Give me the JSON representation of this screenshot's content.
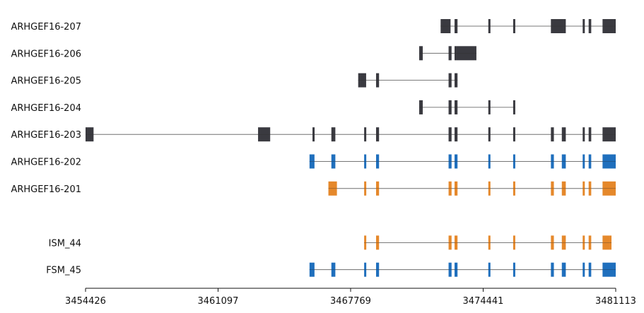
{
  "chart_data": {
    "type": "gene-structure",
    "title": "",
    "xlabel": "",
    "ylabel": "",
    "xlim": [
      3454426,
      3481113
    ],
    "xticks": [
      3454426,
      3461097,
      3467769,
      3474441,
      3481113
    ],
    "colors": {
      "reference": "#3a3a40",
      "blue": "#1f6fbd",
      "orange": "#e5882b",
      "intron": "#7a7a7a",
      "axis": "#111111"
    },
    "transcripts": [
      {
        "name": "ARHGEF16-207",
        "color": "reference",
        "start": 3481113,
        "end": 3481113,
        "exons": [
          [
            3472300,
            3472800,
            "wide"
          ],
          [
            3473000,
            3473150,
            "wide"
          ],
          [
            3474700,
            3474800,
            "thin"
          ],
          [
            3475950,
            3476050,
            "thin"
          ],
          [
            3477850,
            3478600,
            "wide"
          ],
          [
            3479450,
            3479550,
            "thin"
          ],
          [
            3479750,
            3479880,
            "thin"
          ],
          [
            3480450,
            3481113,
            "wide"
          ]
        ]
      },
      {
        "name": "ARHGEF16-206",
        "color": "reference",
        "exons": [
          [
            3471220,
            3471400,
            "thin"
          ],
          [
            3472700,
            3472850,
            "thin"
          ],
          [
            3473000,
            3474100,
            "wide"
          ]
        ]
      },
      {
        "name": "ARHGEF16-205",
        "color": "reference",
        "exons": [
          [
            3468150,
            3468550,
            "wide"
          ],
          [
            3469050,
            3469200,
            "thin"
          ],
          [
            3472700,
            3472850,
            "thin"
          ],
          [
            3473000,
            3473150,
            "thin"
          ]
        ]
      },
      {
        "name": "ARHGEF16-204",
        "color": "reference",
        "exons": [
          [
            3471220,
            3471400,
            "thin"
          ],
          [
            3472700,
            3472850,
            "thin"
          ],
          [
            3473000,
            3473150,
            "thin"
          ],
          [
            3474700,
            3474800,
            "thin"
          ],
          [
            3475950,
            3476050,
            "thin"
          ]
        ]
      },
      {
        "name": "ARHGEF16-203",
        "color": "reference",
        "exons": [
          [
            3454426,
            3454830,
            "wide"
          ],
          [
            3463110,
            3463720,
            "wide"
          ],
          [
            3465850,
            3465950,
            "thin"
          ],
          [
            3466800,
            3467000,
            "thin"
          ],
          [
            3468450,
            3468550,
            "thin"
          ],
          [
            3469050,
            3469200,
            "thin"
          ],
          [
            3472700,
            3472850,
            "thin"
          ],
          [
            3473000,
            3473150,
            "thin"
          ],
          [
            3474700,
            3474800,
            "thin"
          ],
          [
            3475950,
            3476050,
            "thin"
          ],
          [
            3477850,
            3478000,
            "thin"
          ],
          [
            3478400,
            3478600,
            "thin"
          ],
          [
            3479450,
            3479550,
            "thin"
          ],
          [
            3479750,
            3479880,
            "thin"
          ],
          [
            3480450,
            3481113,
            "wide"
          ]
        ]
      },
      {
        "name": "ARHGEF16-202",
        "color": "blue",
        "exons": [
          [
            3465700,
            3465950,
            "thin"
          ],
          [
            3466800,
            3467000,
            "thin"
          ],
          [
            3468450,
            3468550,
            "thin"
          ],
          [
            3469050,
            3469200,
            "thin"
          ],
          [
            3472700,
            3472850,
            "thin"
          ],
          [
            3473000,
            3473150,
            "thin"
          ],
          [
            3474700,
            3474800,
            "thin"
          ],
          [
            3475950,
            3476050,
            "thin"
          ],
          [
            3477850,
            3478000,
            "thin"
          ],
          [
            3478400,
            3478600,
            "thin"
          ],
          [
            3479450,
            3479550,
            "thin"
          ],
          [
            3479750,
            3479880,
            "thin"
          ],
          [
            3480450,
            3481113,
            "wide"
          ]
        ]
      },
      {
        "name": "ARHGEF16-201",
        "color": "orange",
        "exons": [
          [
            3466650,
            3467080,
            "wide"
          ],
          [
            3468450,
            3468550,
            "thin"
          ],
          [
            3469050,
            3469200,
            "thin"
          ],
          [
            3472700,
            3472850,
            "thin"
          ],
          [
            3473000,
            3473150,
            "thin"
          ],
          [
            3474700,
            3474800,
            "thin"
          ],
          [
            3475950,
            3476050,
            "thin"
          ],
          [
            3477850,
            3478000,
            "thin"
          ],
          [
            3478400,
            3478600,
            "thin"
          ],
          [
            3479450,
            3479550,
            "thin"
          ],
          [
            3479750,
            3479880,
            "thin"
          ],
          [
            3480450,
            3481113,
            "wide"
          ]
        ]
      },
      {
        "name": "ISM_44",
        "color": "orange",
        "gap_before": true,
        "exons": [
          [
            3468450,
            3468550,
            "thin"
          ],
          [
            3469050,
            3469200,
            "thin"
          ],
          [
            3472700,
            3472850,
            "thin"
          ],
          [
            3473000,
            3473150,
            "thin"
          ],
          [
            3474700,
            3474800,
            "thin"
          ],
          [
            3475950,
            3476050,
            "thin"
          ],
          [
            3477850,
            3478000,
            "thin"
          ],
          [
            3478400,
            3478600,
            "thin"
          ],
          [
            3479450,
            3479550,
            "thin"
          ],
          [
            3479750,
            3479880,
            "thin"
          ],
          [
            3480450,
            3480900,
            "wide"
          ]
        ]
      },
      {
        "name": "FSM_45",
        "color": "blue",
        "exons": [
          [
            3465700,
            3465950,
            "thin"
          ],
          [
            3466800,
            3467000,
            "thin"
          ],
          [
            3468450,
            3468550,
            "thin"
          ],
          [
            3469050,
            3469200,
            "thin"
          ],
          [
            3472700,
            3472850,
            "thin"
          ],
          [
            3473000,
            3473150,
            "thin"
          ],
          [
            3474700,
            3474800,
            "thin"
          ],
          [
            3475950,
            3476050,
            "thin"
          ],
          [
            3477850,
            3478000,
            "thin"
          ],
          [
            3478400,
            3478600,
            "thin"
          ],
          [
            3479450,
            3479550,
            "thin"
          ],
          [
            3479750,
            3479880,
            "thin"
          ],
          [
            3480450,
            3481113,
            "wide"
          ]
        ]
      }
    ]
  }
}
